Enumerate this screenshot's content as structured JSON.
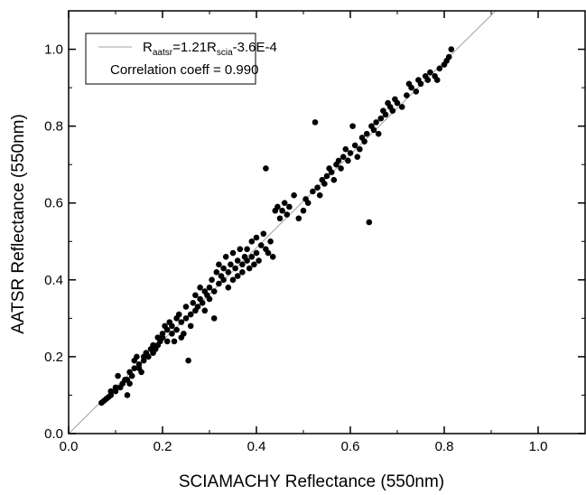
{
  "chart_data": {
    "type": "scatter",
    "xlabel": "SCIAMACHY Reflectance (550nm)",
    "ylabel": "AATSR Reflectance (550nm)",
    "xlim": [
      0.0,
      1.1
    ],
    "ylim": [
      0.0,
      1.1
    ],
    "x_ticks": [
      "0.0",
      "0.2",
      "0.4",
      "0.6",
      "0.8",
      "1.0"
    ],
    "y_ticks": [
      "0.0",
      "0.2",
      "0.4",
      "0.6",
      "0.8",
      "1.0"
    ],
    "grid": false,
    "legend_position": "top-left",
    "legend": {
      "fit_prefix": "R",
      "fit_sub1": "aatsr",
      "fit_mid": "=1.21R",
      "fit_sub2": "scia",
      "fit_suffix": "-3.6E-4",
      "correlation": "Correlation coeff = 0.990"
    },
    "fit_line": {
      "slope": 1.21,
      "intercept": -0.00036,
      "color": "#a0a0a0"
    },
    "marker_color": "#000000",
    "points": [
      [
        0.07,
        0.08
      ],
      [
        0.075,
        0.085
      ],
      [
        0.08,
        0.09
      ],
      [
        0.085,
        0.095
      ],
      [
        0.09,
        0.1
      ],
      [
        0.09,
        0.11
      ],
      [
        0.1,
        0.11
      ],
      [
        0.1,
        0.12
      ],
      [
        0.105,
        0.15
      ],
      [
        0.11,
        0.12
      ],
      [
        0.115,
        0.13
      ],
      [
        0.12,
        0.14
      ],
      [
        0.125,
        0.14
      ],
      [
        0.125,
        0.1
      ],
      [
        0.13,
        0.16
      ],
      [
        0.13,
        0.13
      ],
      [
        0.135,
        0.15
      ],
      [
        0.14,
        0.19
      ],
      [
        0.14,
        0.17
      ],
      [
        0.145,
        0.2
      ],
      [
        0.15,
        0.17
      ],
      [
        0.15,
        0.18
      ],
      [
        0.155,
        0.16
      ],
      [
        0.16,
        0.19
      ],
      [
        0.16,
        0.2
      ],
      [
        0.165,
        0.21
      ],
      [
        0.17,
        0.2
      ],
      [
        0.175,
        0.22
      ],
      [
        0.18,
        0.21
      ],
      [
        0.18,
        0.23
      ],
      [
        0.185,
        0.22
      ],
      [
        0.19,
        0.25
      ],
      [
        0.19,
        0.23
      ],
      [
        0.195,
        0.24
      ],
      [
        0.2,
        0.25
      ],
      [
        0.2,
        0.26
      ],
      [
        0.205,
        0.28
      ],
      [
        0.21,
        0.24
      ],
      [
        0.21,
        0.27
      ],
      [
        0.215,
        0.29
      ],
      [
        0.22,
        0.26
      ],
      [
        0.22,
        0.28
      ],
      [
        0.225,
        0.24
      ],
      [
        0.23,
        0.3
      ],
      [
        0.23,
        0.27
      ],
      [
        0.235,
        0.31
      ],
      [
        0.24,
        0.25
      ],
      [
        0.24,
        0.29
      ],
      [
        0.245,
        0.26
      ],
      [
        0.25,
        0.3
      ],
      [
        0.25,
        0.33
      ],
      [
        0.255,
        0.19
      ],
      [
        0.26,
        0.31
      ],
      [
        0.26,
        0.28
      ],
      [
        0.265,
        0.34
      ],
      [
        0.27,
        0.32
      ],
      [
        0.27,
        0.36
      ],
      [
        0.275,
        0.33
      ],
      [
        0.28,
        0.35
      ],
      [
        0.28,
        0.38
      ],
      [
        0.285,
        0.34
      ],
      [
        0.29,
        0.37
      ],
      [
        0.29,
        0.32
      ],
      [
        0.295,
        0.36
      ],
      [
        0.3,
        0.38
      ],
      [
        0.3,
        0.35
      ],
      [
        0.305,
        0.4
      ],
      [
        0.31,
        0.3
      ],
      [
        0.31,
        0.37
      ],
      [
        0.315,
        0.42
      ],
      [
        0.32,
        0.39
      ],
      [
        0.32,
        0.44
      ],
      [
        0.325,
        0.41
      ],
      [
        0.33,
        0.4
      ],
      [
        0.33,
        0.43
      ],
      [
        0.335,
        0.46
      ],
      [
        0.34,
        0.42
      ],
      [
        0.34,
        0.38
      ],
      [
        0.345,
        0.44
      ],
      [
        0.35,
        0.4
      ],
      [
        0.35,
        0.47
      ],
      [
        0.355,
        0.43
      ],
      [
        0.36,
        0.45
      ],
      [
        0.36,
        0.41
      ],
      [
        0.365,
        0.48
      ],
      [
        0.37,
        0.44
      ],
      [
        0.37,
        0.42
      ],
      [
        0.375,
        0.46
      ],
      [
        0.38,
        0.45
      ],
      [
        0.38,
        0.48
      ],
      [
        0.385,
        0.43
      ],
      [
        0.39,
        0.5
      ],
      [
        0.39,
        0.46
      ],
      [
        0.395,
        0.44
      ],
      [
        0.4,
        0.47
      ],
      [
        0.4,
        0.51
      ],
      [
        0.405,
        0.45
      ],
      [
        0.41,
        0.49
      ],
      [
        0.415,
        0.52
      ],
      [
        0.42,
        0.48
      ],
      [
        0.42,
        0.69
      ],
      [
        0.425,
        0.47
      ],
      [
        0.43,
        0.5
      ],
      [
        0.435,
        0.46
      ],
      [
        0.44,
        0.58
      ],
      [
        0.445,
        0.59
      ],
      [
        0.45,
        0.56
      ],
      [
        0.455,
        0.58
      ],
      [
        0.46,
        0.6
      ],
      [
        0.465,
        0.57
      ],
      [
        0.47,
        0.59
      ],
      [
        0.48,
        0.62
      ],
      [
        0.49,
        0.56
      ],
      [
        0.5,
        0.58
      ],
      [
        0.505,
        0.61
      ],
      [
        0.51,
        0.6
      ],
      [
        0.52,
        0.63
      ],
      [
        0.525,
        0.81
      ],
      [
        0.53,
        0.64
      ],
      [
        0.535,
        0.62
      ],
      [
        0.54,
        0.66
      ],
      [
        0.545,
        0.65
      ],
      [
        0.55,
        0.67
      ],
      [
        0.555,
        0.69
      ],
      [
        0.56,
        0.68
      ],
      [
        0.565,
        0.66
      ],
      [
        0.57,
        0.7
      ],
      [
        0.575,
        0.71
      ],
      [
        0.58,
        0.69
      ],
      [
        0.585,
        0.72
      ],
      [
        0.59,
        0.74
      ],
      [
        0.595,
        0.71
      ],
      [
        0.6,
        0.73
      ],
      [
        0.605,
        0.8
      ],
      [
        0.61,
        0.75
      ],
      [
        0.615,
        0.72
      ],
      [
        0.62,
        0.74
      ],
      [
        0.625,
        0.77
      ],
      [
        0.63,
        0.76
      ],
      [
        0.635,
        0.78
      ],
      [
        0.64,
        0.55
      ],
      [
        0.645,
        0.8
      ],
      [
        0.65,
        0.79
      ],
      [
        0.655,
        0.81
      ],
      [
        0.66,
        0.78
      ],
      [
        0.665,
        0.82
      ],
      [
        0.67,
        0.84
      ],
      [
        0.675,
        0.83
      ],
      [
        0.68,
        0.86
      ],
      [
        0.685,
        0.85
      ],
      [
        0.69,
        0.84
      ],
      [
        0.695,
        0.87
      ],
      [
        0.7,
        0.86
      ],
      [
        0.71,
        0.85
      ],
      [
        0.72,
        0.88
      ],
      [
        0.73,
        0.9
      ],
      [
        0.74,
        0.89
      ],
      [
        0.75,
        0.91
      ],
      [
        0.76,
        0.93
      ],
      [
        0.77,
        0.94
      ],
      [
        0.78,
        0.93
      ],
      [
        0.79,
        0.95
      ],
      [
        0.8,
        0.96
      ],
      [
        0.81,
        0.98
      ],
      [
        0.815,
        1.0
      ],
      [
        0.805,
        0.97
      ],
      [
        0.785,
        0.92
      ],
      [
        0.765,
        0.92
      ],
      [
        0.745,
        0.92
      ],
      [
        0.725,
        0.91
      ]
    ]
  }
}
